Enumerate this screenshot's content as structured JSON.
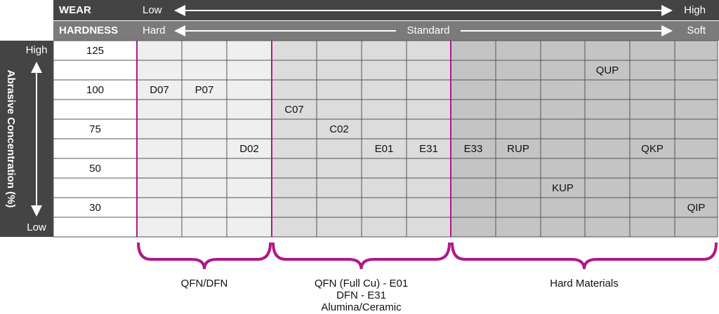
{
  "header": {
    "wear": {
      "label": "WEAR",
      "low": "Low",
      "high": "High"
    },
    "hardness": {
      "label": "HARDNESS",
      "hard": "Hard",
      "standard": "Standard",
      "soft": "Soft"
    }
  },
  "axis": {
    "title": "Abrasive Concentration (%)",
    "high": "High",
    "low": "Low"
  },
  "table": {
    "rows": [
      [
        "125",
        null,
        null,
        null,
        null,
        null,
        null,
        null,
        null,
        null,
        null,
        null,
        null,
        null
      ],
      [
        null,
        null,
        null,
        null,
        null,
        null,
        null,
        null,
        null,
        null,
        null,
        "QUP",
        null,
        null
      ],
      [
        "100",
        "D07",
        "P07",
        null,
        null,
        null,
        null,
        null,
        null,
        null,
        null,
        null,
        null,
        null
      ],
      [
        null,
        null,
        null,
        null,
        "C07",
        null,
        null,
        null,
        null,
        null,
        null,
        null,
        null,
        null
      ],
      [
        "75",
        null,
        null,
        null,
        null,
        "C02",
        null,
        null,
        null,
        null,
        null,
        null,
        null,
        null
      ],
      [
        null,
        null,
        null,
        "D02",
        null,
        null,
        "E01",
        "E31",
        "E33",
        "RUP",
        null,
        null,
        "QKP",
        null
      ],
      [
        "50",
        null,
        null,
        null,
        null,
        null,
        null,
        null,
        null,
        null,
        null,
        null,
        null,
        null
      ],
      [
        null,
        null,
        null,
        null,
        null,
        null,
        null,
        null,
        null,
        null,
        "KUP",
        null,
        null,
        null
      ],
      [
        "30",
        null,
        null,
        null,
        null,
        null,
        null,
        null,
        null,
        null,
        null,
        null,
        null,
        "QIP"
      ],
      [
        null,
        null,
        null,
        null,
        null,
        null,
        null,
        null,
        null,
        null,
        null,
        null,
        null,
        null
      ]
    ]
  },
  "groups": [
    {
      "lines": [
        "QFN/DFN"
      ]
    },
    {
      "lines": [
        "QFN (Full Cu) - E01",
        "DFN - E31",
        "Alumina/Ceramic"
      ]
    },
    {
      "lines": [
        "Hard Materials"
      ]
    }
  ]
}
